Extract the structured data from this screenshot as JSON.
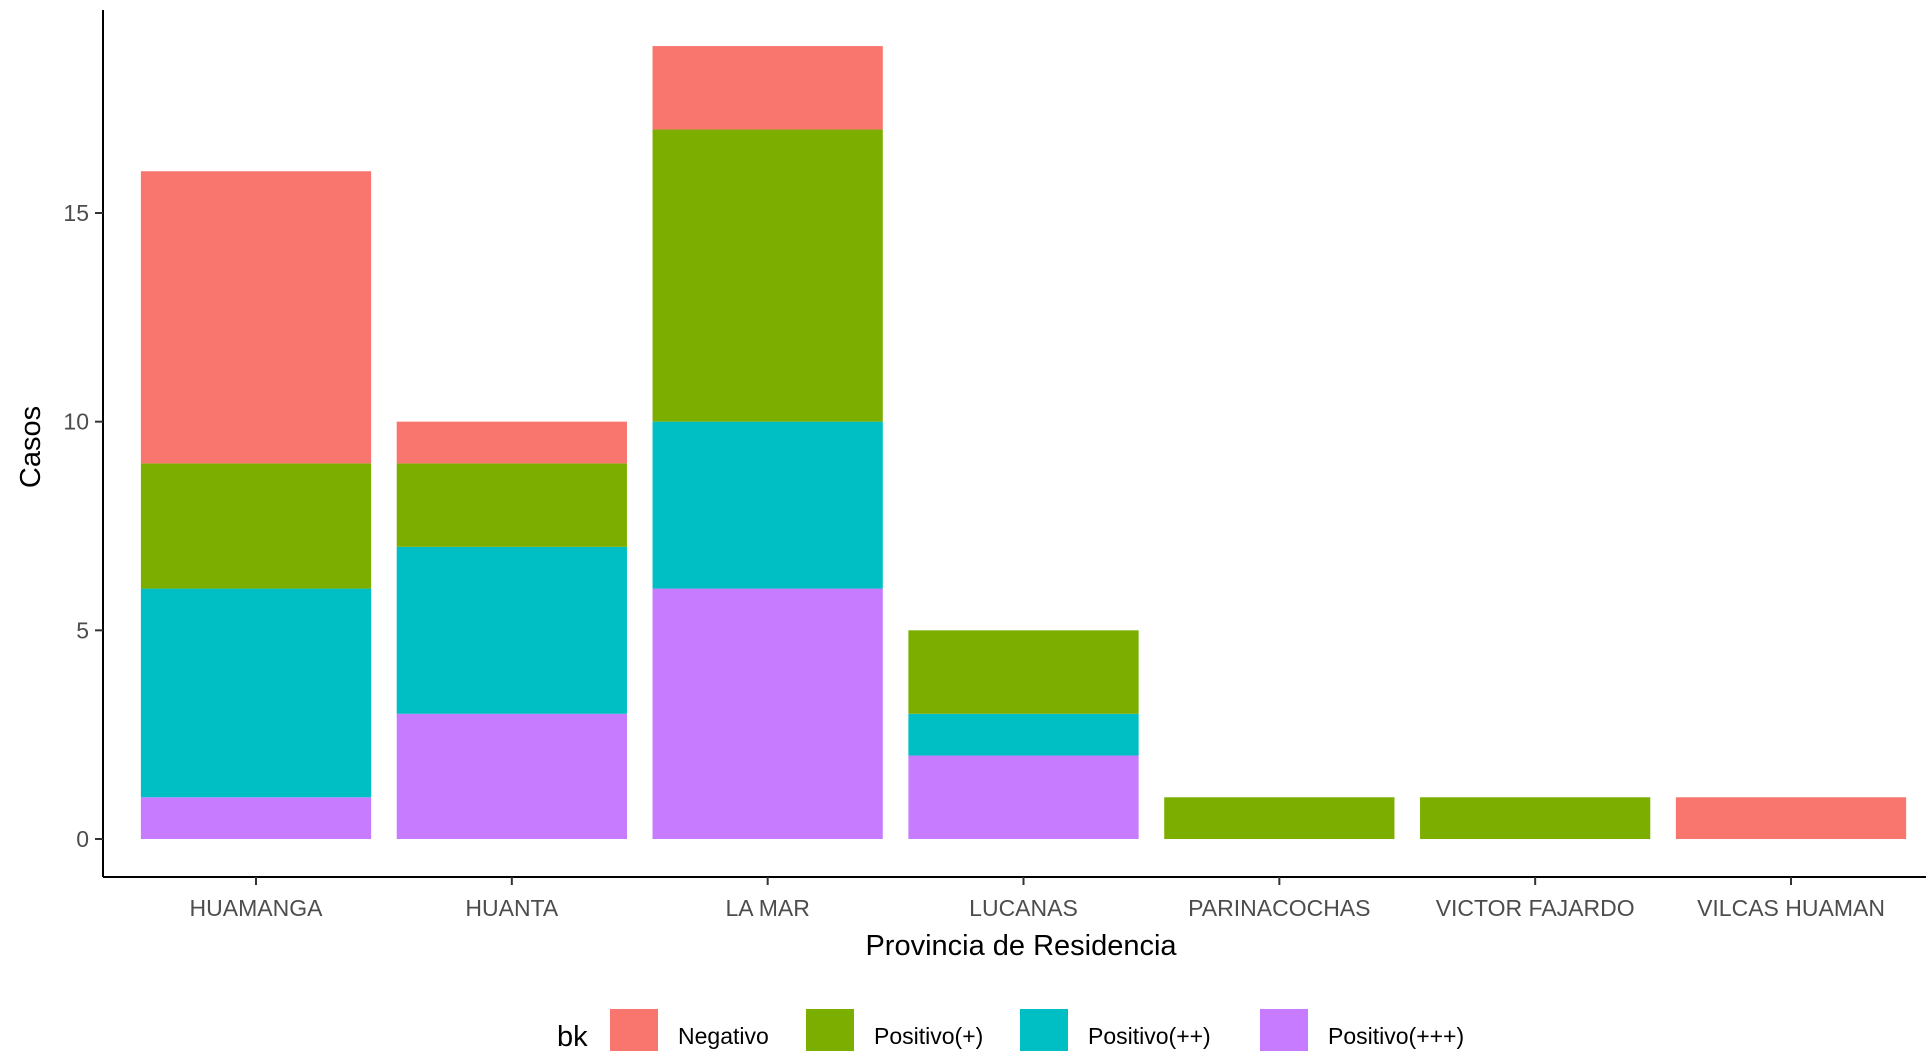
{
  "chart_data": {
    "type": "bar",
    "stacked": true,
    "categories": [
      "HUAMANGA",
      "HUANTA",
      "LA MAR",
      "LUCANAS",
      "PARINACOCHAS",
      "VICTOR FAJARDO",
      "VILCAS HUAMAN"
    ],
    "series": [
      {
        "name": "Negativo",
        "color": "#F8766D",
        "values": [
          7,
          1,
          2,
          0,
          0,
          0,
          1
        ]
      },
      {
        "name": "Positivo(+)",
        "color": "#7CAE00",
        "values": [
          3,
          2,
          7,
          2,
          1,
          1,
          0
        ]
      },
      {
        "name": "Positivo(++)",
        "color": "#00BFC4",
        "values": [
          5,
          4,
          4,
          1,
          0,
          0,
          0
        ]
      },
      {
        "name": "Positivo(+++)",
        "color": "#C77CFF",
        "values": [
          1,
          3,
          6,
          2,
          0,
          0,
          0
        ]
      }
    ],
    "stack_order_bottom_to_top": [
      "Positivo(+++)",
      "Positivo(++)",
      "Positivo(+)",
      "Negativo"
    ],
    "xlabel": "Provincia de Residencia",
    "ylabel": "Casos",
    "yticks": [
      0,
      5,
      10,
      15
    ],
    "ylim": [
      0,
      19
    ],
    "grid": false,
    "legend": {
      "title": "bk",
      "placement": "bottom",
      "items": [
        "Negativo",
        "Positivo(+)",
        "Positivo(++)",
        "Positivo(+++)"
      ]
    }
  }
}
